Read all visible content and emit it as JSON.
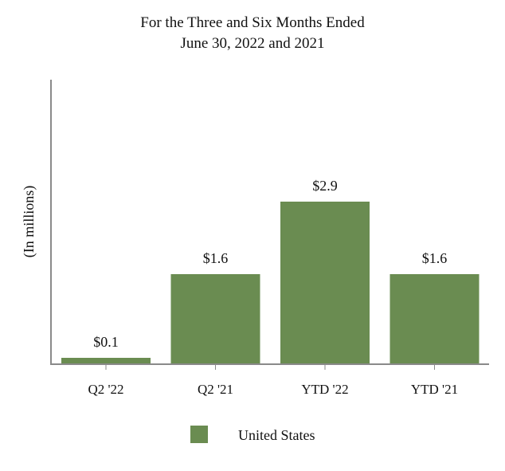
{
  "chart_data": {
    "type": "bar",
    "title": [
      "For the Three and Six Months Ended",
      "June 30, 2022 and 2021"
    ],
    "ylabel": "(In millions)",
    "xlabel": "",
    "categories": [
      "Q2 '22",
      "Q2 '21",
      "YTD '22",
      "YTD '21"
    ],
    "series": [
      {
        "name": "United States",
        "values": [
          0.1,
          1.6,
          2.9,
          1.6
        ],
        "labels": [
          "$0.1",
          "$1.6",
          "$2.9",
          "$1.6"
        ],
        "color": "#6a8c51"
      }
    ],
    "ylim": [
      0,
      3.6
    ],
    "grid": false,
    "legend_position": "bottom-center"
  }
}
